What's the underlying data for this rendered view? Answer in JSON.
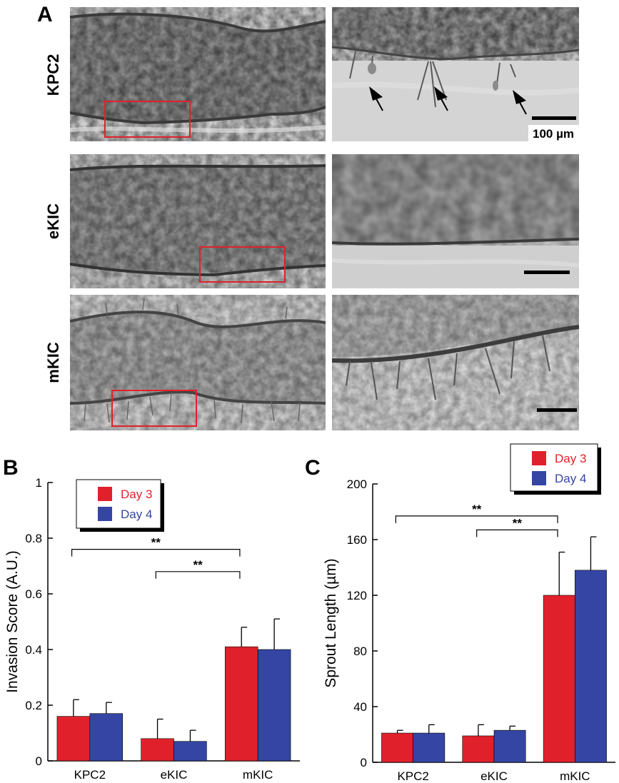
{
  "panel_a": {
    "label": "A",
    "rows": [
      {
        "name": "KPC2",
        "scale_bar_text": "100 µm"
      },
      {
        "name": "eKIC",
        "scale_bar_text": ""
      },
      {
        "name": "mKIC",
        "scale_bar_text": ""
      }
    ]
  },
  "chart_data": [
    {
      "panel": "B",
      "type": "bar",
      "title": "",
      "xlabel": "",
      "ylabel": "Invasion Score (A.U.)",
      "ylim": [
        0,
        1
      ],
      "yticks": [
        0,
        0.2,
        0.4,
        0.6,
        0.8,
        1
      ],
      "ytick_labels": [
        "0",
        "0.2",
        "0.4",
        "0.6",
        "0.8",
        "1"
      ],
      "categories": [
        "KPC2",
        "eKIC",
        "mKIC"
      ],
      "series": [
        {
          "name": "Day 3",
          "color": "#e0212b",
          "values": [
            0.16,
            0.08,
            0.41
          ],
          "errors": [
            0.06,
            0.07,
            0.07
          ]
        },
        {
          "name": "Day 4",
          "color": "#3545a3",
          "values": [
            0.17,
            0.07,
            0.4
          ],
          "errors": [
            0.04,
            0.04,
            0.11
          ]
        }
      ],
      "legend_position": "top-left",
      "significance": [
        {
          "from": "KPC2",
          "to": "mKIC",
          "label": "**",
          "y": 0.76
        },
        {
          "from": "eKIC",
          "to": "mKIC",
          "label": "**",
          "y": 0.68
        }
      ]
    },
    {
      "panel": "C",
      "type": "bar",
      "title": "",
      "xlabel": "",
      "ylabel": "Sprout Length (µm)",
      "ylim": [
        0,
        200
      ],
      "yticks": [
        0,
        40,
        80,
        120,
        160,
        200
      ],
      "ytick_labels": [
        "0",
        "40",
        "80",
        "120",
        "160",
        "200"
      ],
      "categories": [
        "KPC2",
        "eKIC",
        "mKIC"
      ],
      "series": [
        {
          "name": "Day 3",
          "color": "#e0212b",
          "values": [
            21,
            19,
            120
          ],
          "errors": [
            2,
            8,
            31
          ]
        },
        {
          "name": "Day 4",
          "color": "#3545a3",
          "values": [
            21,
            23,
            138
          ],
          "errors": [
            6,
            3,
            24
          ]
        }
      ],
      "legend_position": "top-right",
      "significance": [
        {
          "from": "KPC2",
          "to": "mKIC",
          "label": "**",
          "y": 177
        },
        {
          "from": "eKIC",
          "to": "mKIC",
          "label": "**",
          "y": 167
        }
      ]
    }
  ]
}
